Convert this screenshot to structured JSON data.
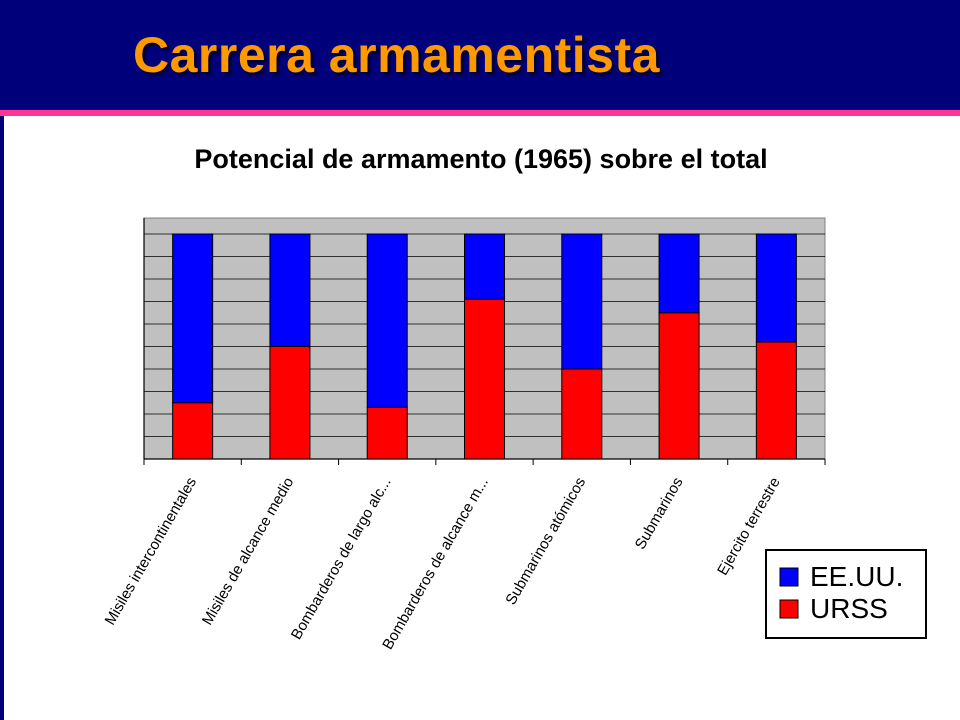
{
  "slide": {
    "title": "Carrera armamentista",
    "colors": {
      "background": "#00007a",
      "title": "#ff9900",
      "rule": "#ff3399"
    }
  },
  "chart_data": {
    "type": "bar",
    "stacked": true,
    "title": "Potencial de armamento (1965) sobre el total",
    "xlabel": "",
    "ylabel": "",
    "ylim": [
      0,
      100
    ],
    "grid": true,
    "legend_position": "bottom-right",
    "categories": [
      "Misiles intercontinentales",
      "Misiles de alcance medio",
      "Bombarderos de largo alc...",
      "Bombarderos de alcance m...",
      "Submarinos atómicos",
      "Submarinos",
      "Ejercito terrestre"
    ],
    "series": [
      {
        "name": "URSS",
        "color": "#ff0000",
        "values": [
          25,
          50,
          23,
          71,
          40,
          65,
          52
        ]
      },
      {
        "name": "EE.UU.",
        "color": "#0000ff",
        "values": [
          75,
          50,
          77,
          29,
          60,
          35,
          48
        ]
      }
    ]
  }
}
